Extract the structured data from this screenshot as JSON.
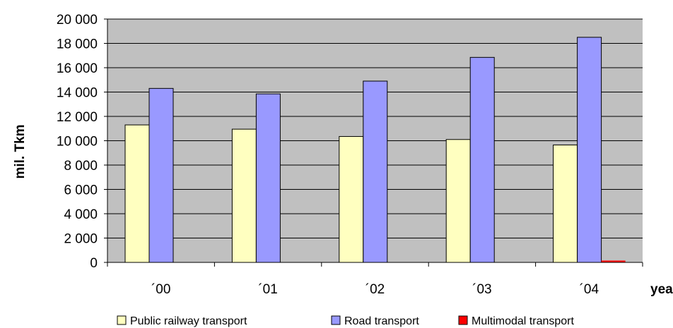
{
  "chart_data": {
    "type": "bar",
    "title": "",
    "xlabel": "year",
    "ylabel": "mil. Tkm",
    "categories": [
      "´00",
      "´01",
      "´02",
      "´03",
      "´04"
    ],
    "series": [
      {
        "name": "Public railway transport",
        "values": [
          11300,
          10950,
          10350,
          10100,
          9650
        ],
        "color": "#ffffc0"
      },
      {
        "name": "Road transport",
        "values": [
          14300,
          13850,
          14900,
          16850,
          18500
        ],
        "color": "#9999ff"
      },
      {
        "name": "Multimodal transport",
        "values": [
          0,
          0,
          0,
          0,
          150
        ],
        "color": "#ff0000"
      }
    ],
    "ylim": [
      0,
      20000
    ],
    "yticks": [
      0,
      2000,
      4000,
      6000,
      8000,
      10000,
      12000,
      14000,
      16000,
      18000,
      20000
    ],
    "ytick_labels": [
      "0",
      "2 000",
      "4 000",
      "6 000",
      "8 000",
      "10 000",
      "12 000",
      "14 000",
      "16 000",
      "18 000",
      "20 000"
    ],
    "grid": true,
    "plot_background": "#c0c0c0",
    "legend_position": "bottom"
  }
}
